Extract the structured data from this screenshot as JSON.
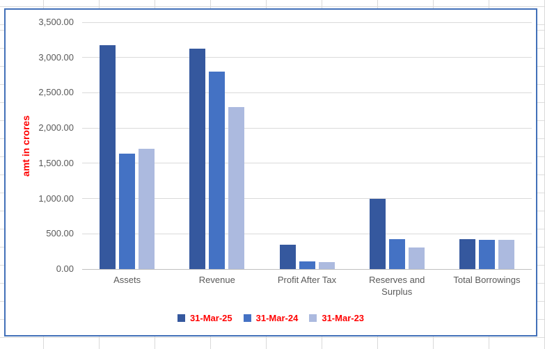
{
  "colors": {
    "chart_border": "#4270b8",
    "gridline": "#dadada",
    "axis_line": "#bfbfbf",
    "tick_text": "#595959",
    "accent_red": "#ff0000",
    "worksheet_gridline": "#d9d9d9"
  },
  "chart_data": {
    "type": "bar",
    "title": "",
    "xlabel": "",
    "ylabel": "amt in crores",
    "categories": [
      "Assets",
      "Revenue",
      "Profit After Tax",
      "Reserves and Surplus",
      "Total Borrowings"
    ],
    "series": [
      {
        "name": "31-Mar-25",
        "color": "#35589E",
        "values": [
          3180,
          3130,
          350,
          1000,
          420
        ]
      },
      {
        "name": "31-Mar-24",
        "color": "#4472C4",
        "values": [
          1640,
          2800,
          110,
          420,
          410
        ]
      },
      {
        "name": "31-Mar-23",
        "color": "#ACBADF",
        "values": [
          1710,
          2300,
          100,
          310,
          410
        ]
      }
    ],
    "ylim": [
      0,
      3500
    ],
    "ytick_step": 500,
    "ytick_labels": [
      "0.00",
      "500.00",
      "1,000.00",
      "1,500.00",
      "2,000.00",
      "2,500.00",
      "3,000.00",
      "3,500.00"
    ],
    "grid": true,
    "legend_position": "bottom",
    "legend_text_color": "#ff0000",
    "axis_title_color": "#ff0000"
  }
}
